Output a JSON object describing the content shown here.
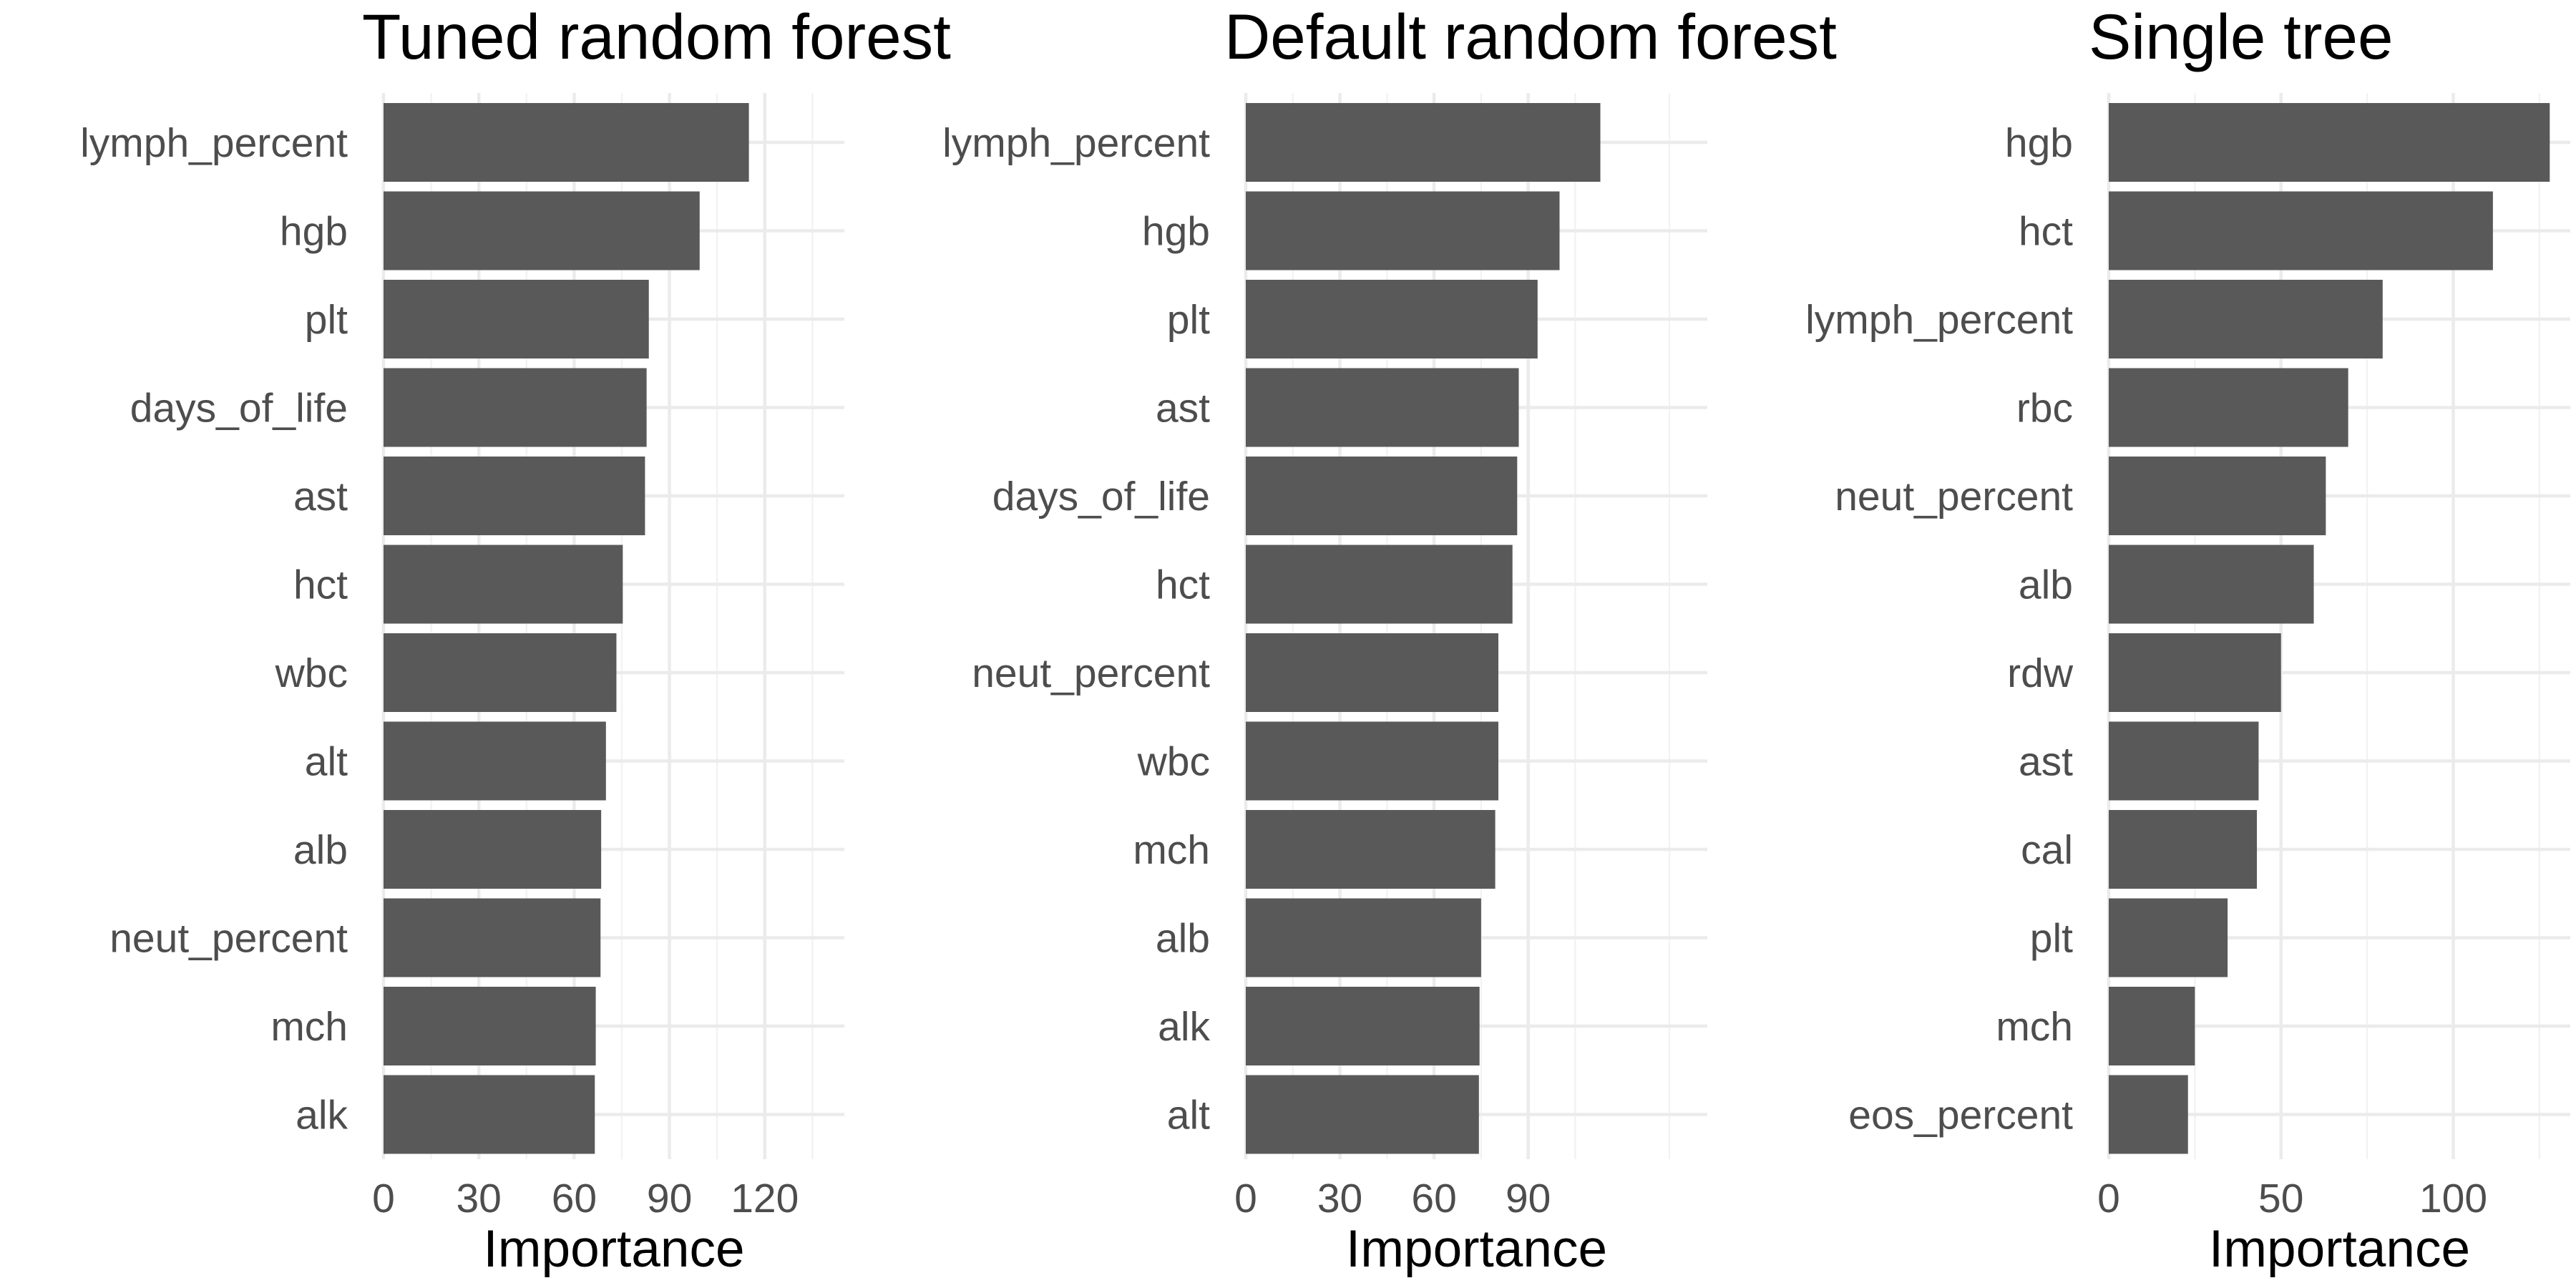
{
  "chart_data": [
    {
      "type": "bar",
      "orientation": "horizontal",
      "title": "Tuned random forest",
      "xlabel": "Importance",
      "ylabel": "",
      "categories": [
        "lymph_percent",
        "hgb",
        "plt",
        "days_of_life",
        "ast",
        "hct",
        "wbc",
        "alt",
        "alb",
        "neut_percent",
        "mch",
        "alk"
      ],
      "values": [
        115,
        99.5,
        83.5,
        82.8,
        82.3,
        75.3,
        73.3,
        70,
        68.5,
        68.3,
        66.8,
        66.5
      ],
      "xlim": [
        0,
        120
      ],
      "xticks": [
        0,
        30,
        60,
        90,
        120
      ],
      "grid": true,
      "color": "#595959"
    },
    {
      "type": "bar",
      "orientation": "horizontal",
      "title": "Default random forest",
      "xlabel": "Importance",
      "ylabel": "",
      "categories": [
        "lymph_percent",
        "hgb",
        "plt",
        "ast",
        "days_of_life",
        "hct",
        "neut_percent",
        "wbc",
        "mch",
        "alb",
        "alk",
        "alt"
      ],
      "values": [
        113,
        100,
        93,
        87,
        86.5,
        85,
        80.5,
        80.5,
        79.5,
        75,
        74.5,
        74.3
      ],
      "xlim": [
        0,
        120
      ],
      "xticks": [
        0,
        30,
        60,
        90
      ],
      "grid": true,
      "color": "#595959"
    },
    {
      "type": "bar",
      "orientation": "horizontal",
      "title": "Single tree",
      "xlabel": "Importance",
      "ylabel": "",
      "categories": [
        "hgb",
        "hct",
        "lymph_percent",
        "rbc",
        "neut_percent",
        "alb",
        "rdw",
        "ast",
        "cal",
        "plt",
        "mch",
        "eos_percent"
      ],
      "values": [
        128,
        111.5,
        79.5,
        69.5,
        63,
        59.5,
        50,
        43.5,
        43,
        34.5,
        25,
        23
      ],
      "xlim": [
        0,
        135
      ],
      "xticks": [
        0,
        50,
        100
      ],
      "grid": true,
      "color": "#595959"
    }
  ]
}
